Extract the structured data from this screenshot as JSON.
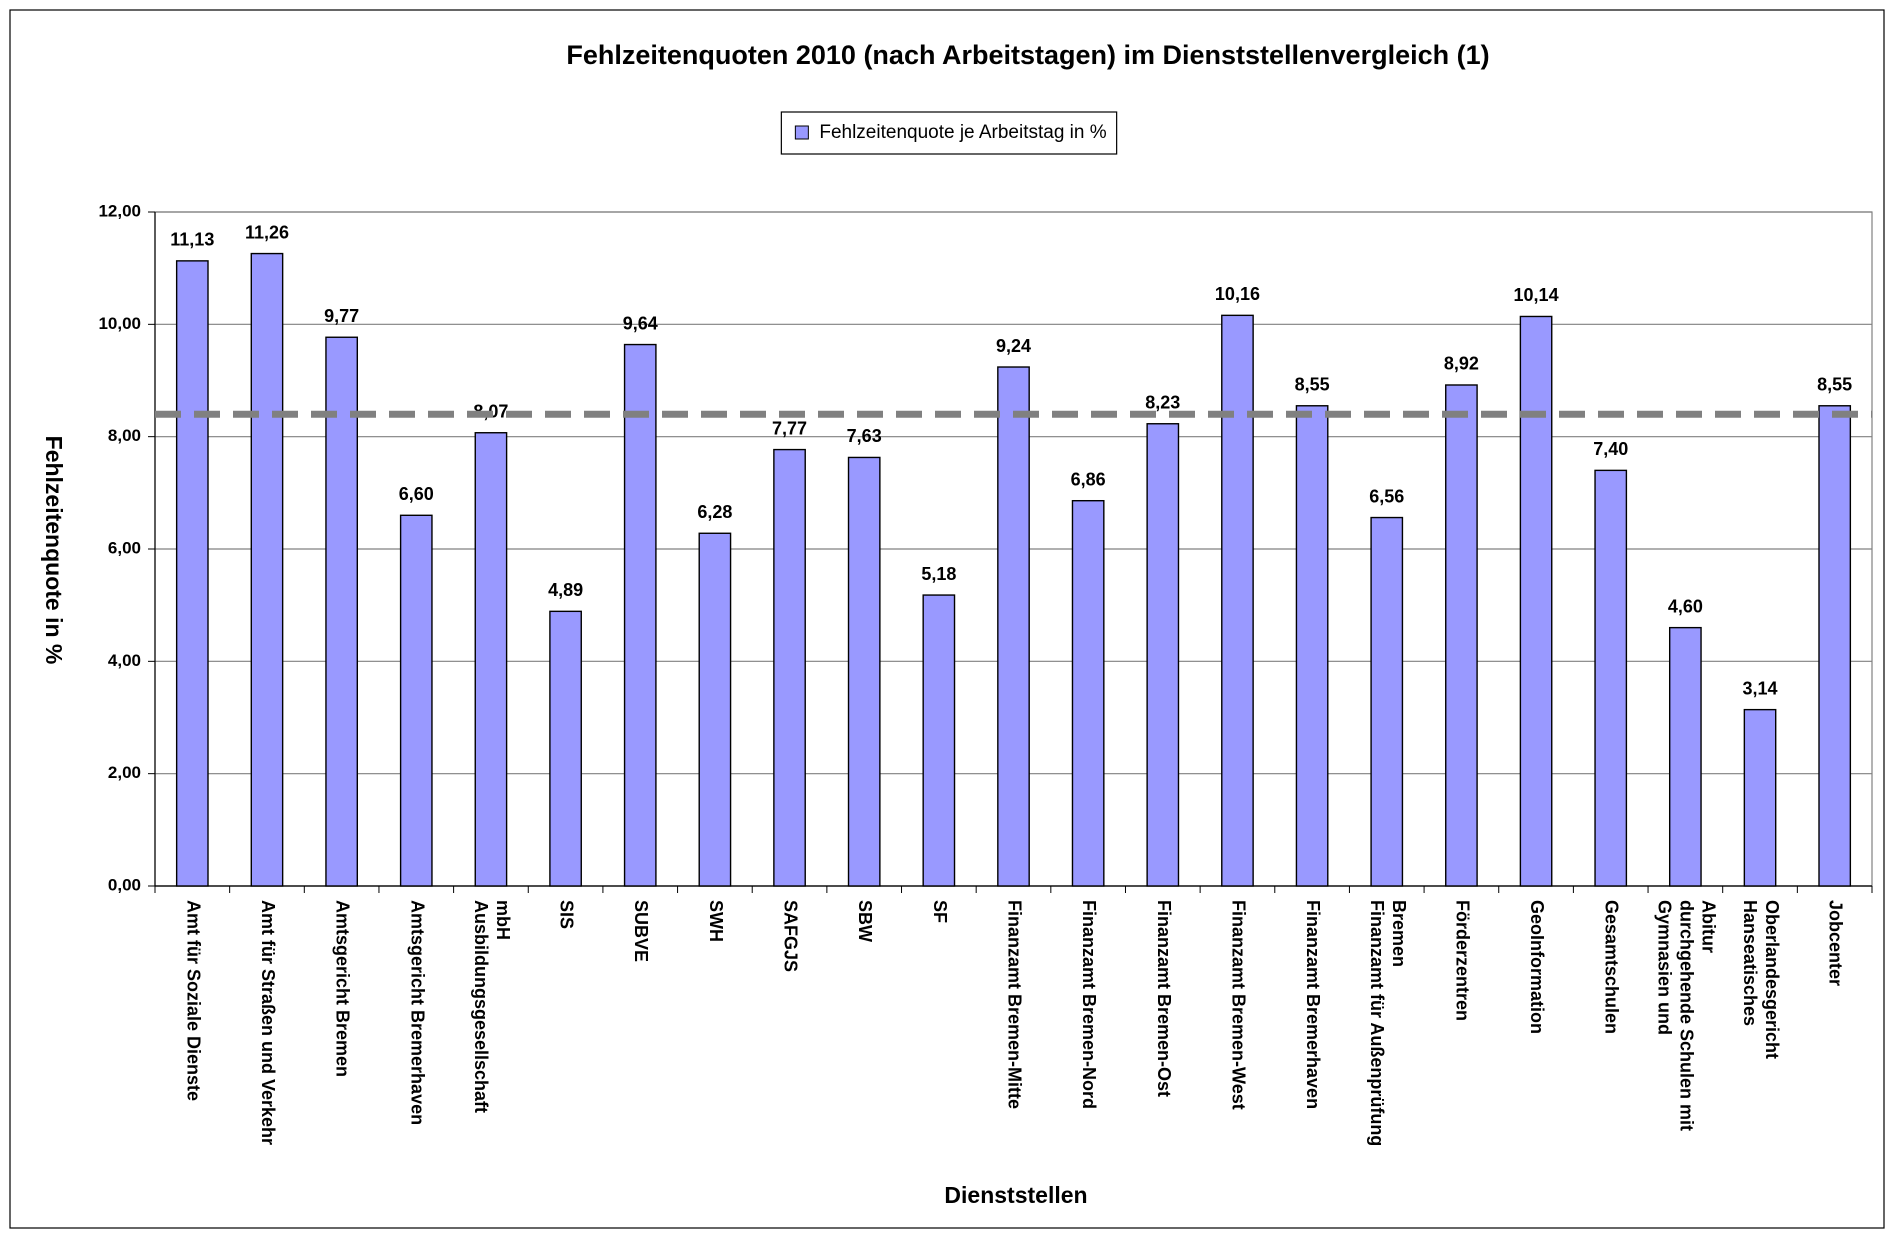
{
  "chart_data": {
    "type": "bar",
    "title": "Fehlzeitenquoten 2010 (nach Arbeitstagen) im Dienststellenvergleich (1)",
    "x_label": "Dienststellen",
    "y_label": "Fehlzeitenquote in %",
    "categories": [
      "Amt für Soziale Dienste",
      "Amt für Straßen und Verkehr",
      "Amtsgericht Bremen",
      "Amtsgericht Bremerhaven",
      "Ausbildungsgesellschaft mbH",
      "SIS",
      "SUBVE",
      "SWH",
      "SAFGJS",
      "SBW",
      "SF",
      "Finanzamt Bremen-Mitte",
      "Finanzamt Bremen-Nord",
      "Finanzamt Bremen-Ost",
      "Finanzamt Bremen-West",
      "Finanzamt Bremerhaven",
      "Finanzamt für Außenprüfung Bremen",
      "Förderzentren",
      "GeoInformation",
      "Gesamtschulen",
      "Gymnasien und durchgehende Schulen mit Abitur",
      "Hanseatisches Oberlandesgericht",
      "Jobcenter"
    ],
    "series": [
      {
        "name": "Fehlzeitenquote je Arbeitstag in %",
        "color": "#9999ff",
        "values": [
          11.13,
          11.26,
          9.77,
          6.6,
          8.07,
          4.89,
          9.64,
          6.28,
          7.77,
          7.63,
          5.18,
          9.24,
          6.86,
          8.23,
          10.16,
          8.55,
          6.56,
          8.92,
          10.14,
          7.4,
          4.6,
          3.14,
          8.55
        ],
        "value_labels": [
          "11,13",
          "11,26",
          "9,77",
          "6,60",
          "8,07",
          "4,89",
          "9,64",
          "6,28",
          "7,77",
          "7,63",
          "5,18",
          "9,24",
          "6,86",
          "8,23",
          "10,16",
          "8,55",
          "6,56",
          "8,92",
          "10,14",
          "7,40",
          "4,60",
          "3,14",
          "8,55"
        ]
      }
    ],
    "ylim": [
      0,
      12
    ],
    "yticks": [
      {
        "value": 0,
        "label": "0,00"
      },
      {
        "value": 2,
        "label": "2,00"
      },
      {
        "value": 4,
        "label": "4,00"
      },
      {
        "value": 6,
        "label": "6,00"
      },
      {
        "value": 8,
        "label": "8,00"
      },
      {
        "value": 10,
        "label": "10,00"
      },
      {
        "value": 12,
        "label": "12,00"
      }
    ],
    "grid": true,
    "legend": "top",
    "reference_line": {
      "value": 8.4,
      "color": "#808080",
      "dashed": true
    }
  }
}
